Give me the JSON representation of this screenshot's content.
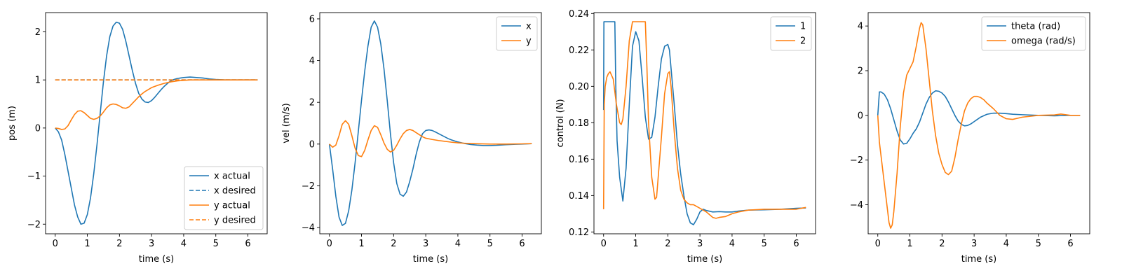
{
  "chart_data": [
    {
      "type": "line",
      "xlabel": "time (s)",
      "ylabel": "pos (m)",
      "xlim": [
        -0.3,
        6.6
      ],
      "ylim": [
        -2.2,
        2.4
      ],
      "xticks": [
        0,
        1,
        2,
        3,
        4,
        5,
        6
      ],
      "yticks": [
        -2,
        -1,
        0,
        1,
        2
      ],
      "grid": false,
      "legend": "lower-right",
      "series": [
        {
          "name": "x actual",
          "color": "#1f77b4",
          "style": "solid",
          "x": [
            0,
            0.1,
            0.2,
            0.3,
            0.4,
            0.5,
            0.6,
            0.7,
            0.8,
            0.9,
            1.0,
            1.1,
            1.2,
            1.3,
            1.4,
            1.5,
            1.6,
            1.7,
            1.8,
            1.9,
            2.0,
            2.1,
            2.2,
            2.3,
            2.4,
            2.5,
            2.6,
            2.7,
            2.8,
            2.9,
            3.0,
            3.1,
            3.2,
            3.3,
            3.4,
            3.5,
            3.6,
            3.7,
            3.8,
            3.9,
            4.0,
            4.2,
            4.4,
            4.6,
            4.8,
            5.0,
            5.3,
            5.6,
            6.0,
            6.3
          ],
          "y": [
            0,
            -0.08,
            -0.25,
            -0.55,
            -0.9,
            -1.25,
            -1.6,
            -1.85,
            -2.0,
            -1.98,
            -1.8,
            -1.45,
            -0.95,
            -0.35,
            0.3,
            0.95,
            1.5,
            1.9,
            2.12,
            2.2,
            2.18,
            2.05,
            1.8,
            1.5,
            1.2,
            0.93,
            0.72,
            0.6,
            0.54,
            0.53,
            0.57,
            0.64,
            0.72,
            0.8,
            0.87,
            0.93,
            0.98,
            1.01,
            1.03,
            1.04,
            1.05,
            1.06,
            1.05,
            1.04,
            1.02,
            1.01,
            1.0,
            1.0,
            1.0,
            1.0
          ]
        },
        {
          "name": "x desired",
          "color": "#1f77b4",
          "style": "dashed",
          "x": [
            0,
            6.3
          ],
          "y": [
            1,
            1
          ]
        },
        {
          "name": "y actual",
          "color": "#ff7f0e",
          "style": "solid",
          "x": [
            0,
            0.1,
            0.2,
            0.3,
            0.4,
            0.5,
            0.6,
            0.7,
            0.8,
            0.9,
            1.0,
            1.1,
            1.2,
            1.3,
            1.4,
            1.5,
            1.6,
            1.7,
            1.8,
            1.9,
            2.0,
            2.1,
            2.2,
            2.3,
            2.4,
            2.5,
            2.6,
            2.7,
            2.8,
            2.9,
            3.0,
            3.2,
            3.4,
            3.6,
            3.8,
            4.0,
            4.2,
            4.5,
            5.0,
            5.5,
            6.0,
            6.3
          ],
          "y": [
            0,
            -0.01,
            -0.03,
            -0.02,
            0.05,
            0.17,
            0.28,
            0.35,
            0.36,
            0.32,
            0.26,
            0.2,
            0.18,
            0.2,
            0.25,
            0.33,
            0.42,
            0.48,
            0.5,
            0.49,
            0.46,
            0.42,
            0.41,
            0.44,
            0.51,
            0.58,
            0.65,
            0.71,
            0.76,
            0.8,
            0.84,
            0.89,
            0.93,
            0.96,
            0.98,
            0.99,
            1.0,
            1.0,
            1.0,
            1.0,
            1.0,
            1.0
          ]
        },
        {
          "name": "y desired",
          "color": "#ff7f0e",
          "style": "dashed",
          "x": [
            0,
            6.3
          ],
          "y": [
            1,
            1
          ]
        }
      ]
    },
    {
      "type": "line",
      "xlabel": "time (s)",
      "ylabel": "vel (m/s)",
      "xlim": [
        -0.3,
        6.6
      ],
      "ylim": [
        -4.3,
        6.3
      ],
      "xticks": [
        0,
        1,
        2,
        3,
        4,
        5,
        6
      ],
      "yticks": [
        -4,
        -2,
        0,
        2,
        4,
        6
      ],
      "grid": false,
      "legend": "upper-right",
      "series": [
        {
          "name": "x",
          "color": "#1f77b4",
          "style": "solid",
          "x": [
            0,
            0.1,
            0.2,
            0.3,
            0.4,
            0.5,
            0.6,
            0.7,
            0.8,
            0.9,
            1.0,
            1.1,
            1.2,
            1.3,
            1.4,
            1.5,
            1.6,
            1.7,
            1.8,
            1.9,
            2.0,
            2.1,
            2.2,
            2.3,
            2.4,
            2.5,
            2.6,
            2.7,
            2.8,
            2.9,
            3.0,
            3.1,
            3.2,
            3.3,
            3.4,
            3.5,
            3.6,
            3.7,
            3.8,
            4.0,
            4.2,
            4.4,
            4.6,
            4.8,
            5.0,
            5.2,
            5.5,
            5.8,
            6.0,
            6.3
          ],
          "y": [
            0,
            -1.2,
            -2.5,
            -3.5,
            -3.9,
            -3.8,
            -3.2,
            -2.2,
            -0.9,
            0.6,
            2.1,
            3.5,
            4.7,
            5.6,
            5.9,
            5.6,
            4.8,
            3.6,
            2.1,
            0.5,
            -0.9,
            -1.9,
            -2.4,
            -2.5,
            -2.3,
            -1.8,
            -1.2,
            -0.5,
            0.1,
            0.5,
            0.65,
            0.68,
            0.65,
            0.58,
            0.5,
            0.42,
            0.34,
            0.26,
            0.2,
            0.1,
            0.03,
            -0.02,
            -0.05,
            -0.07,
            -0.07,
            -0.06,
            -0.03,
            -0.01,
            0.0,
            0.02
          ]
        },
        {
          "name": "y",
          "color": "#ff7f0e",
          "style": "solid",
          "x": [
            0,
            0.1,
            0.2,
            0.3,
            0.4,
            0.5,
            0.6,
            0.7,
            0.8,
            0.9,
            1.0,
            1.1,
            1.2,
            1.3,
            1.4,
            1.5,
            1.6,
            1.7,
            1.8,
            1.9,
            2.0,
            2.1,
            2.2,
            2.3,
            2.4,
            2.5,
            2.6,
            2.7,
            2.8,
            2.9,
            3.0,
            3.2,
            3.4,
            3.6,
            3.8,
            4.0,
            4.2,
            4.5,
            5.0,
            5.5,
            6.0,
            6.3
          ],
          "y": [
            0,
            -0.15,
            -0.05,
            0.4,
            0.95,
            1.12,
            0.95,
            0.4,
            -0.2,
            -0.55,
            -0.6,
            -0.3,
            0.2,
            0.65,
            0.88,
            0.8,
            0.45,
            0.05,
            -0.25,
            -0.38,
            -0.3,
            -0.05,
            0.25,
            0.5,
            0.65,
            0.7,
            0.65,
            0.55,
            0.45,
            0.35,
            0.28,
            0.22,
            0.17,
            0.13,
            0.09,
            0.06,
            0.04,
            0.02,
            0.0,
            0.0,
            0.01,
            0.02
          ]
        }
      ]
    },
    {
      "type": "line",
      "xlabel": "time (s)",
      "ylabel": "control (N)",
      "xlim": [
        -0.3,
        6.6
      ],
      "ylim": [
        0.119,
        0.2405
      ],
      "xticks": [
        0,
        1,
        2,
        3,
        4,
        5,
        6
      ],
      "yticks": [
        0.12,
        0.14,
        0.16,
        0.18,
        0.2,
        0.22,
        0.24
      ],
      "ytick_labels": [
        "0.12",
        "0.14",
        "0.16",
        "0.18",
        "0.20",
        "0.22",
        "0.24"
      ],
      "grid": false,
      "legend": "upper-right",
      "series": [
        {
          "name": "1",
          "color": "#1f77b4",
          "style": "solid",
          "x": [
            0,
            0.01,
            0.05,
            0.1,
            0.2,
            0.3,
            0.35,
            0.38,
            0.42,
            0.5,
            0.6,
            0.7,
            0.8,
            0.9,
            1.0,
            1.1,
            1.2,
            1.3,
            1.4,
            1.5,
            1.6,
            1.7,
            1.8,
            1.9,
            2.0,
            2.05,
            2.1,
            2.2,
            2.3,
            2.4,
            2.5,
            2.6,
            2.7,
            2.8,
            2.9,
            3.0,
            3.1,
            3.2,
            3.4,
            3.6,
            3.8,
            4.0,
            4.2,
            4.5,
            5.0,
            5.5,
            6.0,
            6.3
          ],
          "y": [
            0.187,
            0.2355,
            0.2355,
            0.2355,
            0.2355,
            0.2355,
            0.2355,
            0.2,
            0.17,
            0.15,
            0.137,
            0.155,
            0.19,
            0.222,
            0.23,
            0.225,
            0.205,
            0.183,
            0.171,
            0.172,
            0.183,
            0.2,
            0.215,
            0.222,
            0.223,
            0.22,
            0.21,
            0.19,
            0.168,
            0.152,
            0.14,
            0.13,
            0.125,
            0.124,
            0.127,
            0.131,
            0.1325,
            0.1318,
            0.131,
            0.1312,
            0.131,
            0.131,
            0.1315,
            0.132,
            0.1322,
            0.1325,
            0.133,
            0.1332
          ]
        },
        {
          "name": "2",
          "color": "#ff7f0e",
          "style": "solid",
          "x": [
            0,
            0.02,
            0.05,
            0.1,
            0.15,
            0.2,
            0.3,
            0.4,
            0.5,
            0.55,
            0.6,
            0.7,
            0.8,
            0.9,
            0.95,
            1.3,
            1.35,
            1.4,
            1.5,
            1.6,
            1.65,
            1.7,
            1.8,
            1.9,
            2.0,
            2.05,
            2.1,
            2.2,
            2.3,
            2.4,
            2.5,
            2.6,
            2.7,
            2.8,
            2.9,
            3.0,
            3.2,
            3.4,
            3.5,
            3.6,
            3.8,
            4.0,
            4.2,
            4.5,
            5.0,
            5.5,
            6.0,
            6.3
          ],
          "y": [
            0.1325,
            0.19,
            0.2,
            0.205,
            0.207,
            0.208,
            0.204,
            0.19,
            0.18,
            0.179,
            0.182,
            0.2,
            0.225,
            0.2355,
            0.2355,
            0.2355,
            0.21,
            0.18,
            0.15,
            0.138,
            0.139,
            0.15,
            0.172,
            0.196,
            0.207,
            0.208,
            0.2,
            0.175,
            0.155,
            0.143,
            0.138,
            0.136,
            0.135,
            0.135,
            0.134,
            0.133,
            0.131,
            0.128,
            0.1275,
            0.128,
            0.1285,
            0.13,
            0.131,
            0.132,
            0.1325,
            0.1325,
            0.1325,
            0.1335
          ]
        }
      ]
    },
    {
      "type": "line",
      "xlabel": "time (s)",
      "ylabel": "",
      "xlim": [
        -0.3,
        6.6
      ],
      "ylim": [
        -5.3,
        4.6
      ],
      "xticks": [
        0,
        1,
        2,
        3,
        4,
        5,
        6
      ],
      "yticks": [
        -4,
        -2,
        0,
        2,
        4
      ],
      "grid": false,
      "legend": "upper-right",
      "series": [
        {
          "name": "theta (rad)",
          "color": "#1f77b4",
          "style": "solid",
          "x": [
            0,
            0.05,
            0.1,
            0.2,
            0.3,
            0.4,
            0.5,
            0.6,
            0.7,
            0.8,
            0.9,
            1.0,
            1.1,
            1.2,
            1.3,
            1.4,
            1.5,
            1.6,
            1.7,
            1.8,
            1.9,
            2.0,
            2.1,
            2.2,
            2.3,
            2.4,
            2.5,
            2.6,
            2.7,
            2.8,
            2.9,
            3.0,
            3.1,
            3.2,
            3.4,
            3.6,
            3.8,
            4.0,
            4.2,
            4.5,
            5.0,
            5.5,
            6.0,
            6.3
          ],
          "y": [
            0,
            1.05,
            1.05,
            0.95,
            0.7,
            0.3,
            -0.2,
            -0.7,
            -1.1,
            -1.28,
            -1.25,
            -1.05,
            -0.8,
            -0.6,
            -0.3,
            0.1,
            0.5,
            0.8,
            1.0,
            1.1,
            1.08,
            1.0,
            0.85,
            0.6,
            0.3,
            0.0,
            -0.25,
            -0.4,
            -0.47,
            -0.45,
            -0.38,
            -0.28,
            -0.18,
            -0.08,
            0.05,
            0.1,
            0.1,
            0.08,
            0.05,
            0.03,
            0.0,
            -0.02,
            0.0,
            0.0
          ]
        },
        {
          "name": "omega (rad/s)",
          "color": "#ff7f0e",
          "style": "solid",
          "x": [
            0,
            0.05,
            0.1,
            0.2,
            0.3,
            0.35,
            0.4,
            0.45,
            0.5,
            0.6,
            0.7,
            0.8,
            0.9,
            1.0,
            1.1,
            1.2,
            1.3,
            1.35,
            1.4,
            1.5,
            1.6,
            1.7,
            1.8,
            1.9,
            2.0,
            2.1,
            2.2,
            2.3,
            2.4,
            2.5,
            2.6,
            2.7,
            2.8,
            2.9,
            3.0,
            3.1,
            3.2,
            3.3,
            3.4,
            3.6,
            3.8,
            4.0,
            4.2,
            4.5,
            5.0,
            5.5,
            5.7,
            6.0,
            6.3
          ],
          "y": [
            0,
            -1.2,
            -1.8,
            -3.0,
            -4.2,
            -4.8,
            -5.05,
            -4.9,
            -4.3,
            -2.6,
            -0.5,
            1.0,
            1.8,
            2.1,
            2.4,
            3.1,
            3.9,
            4.15,
            4.05,
            3.0,
            1.6,
            0.2,
            -0.9,
            -1.7,
            -2.2,
            -2.55,
            -2.65,
            -2.5,
            -1.9,
            -1.1,
            -0.4,
            0.2,
            0.55,
            0.75,
            0.85,
            0.85,
            0.8,
            0.7,
            0.55,
            0.3,
            0.0,
            -0.15,
            -0.18,
            -0.08,
            0.0,
            0.02,
            0.06,
            0.0,
            0.0
          ]
        }
      ]
    }
  ]
}
